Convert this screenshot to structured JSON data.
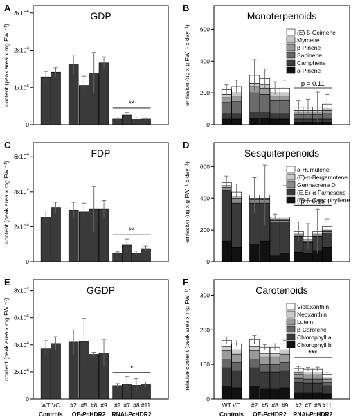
{
  "figure": {
    "xgroups": [
      "Controls",
      "OE-PcHDR2",
      "RNAi-PcHDR2"
    ],
    "xgroup_parts": [
      {
        "pre": "Controls",
        "it": "",
        "post": ""
      },
      {
        "pre": "OE-",
        "it": "Pc",
        "post": "HDR2"
      },
      {
        "pre": "RNAi-",
        "it": "Pc",
        "post": "HDR2"
      }
    ],
    "xticks": [
      "WT",
      "VC",
      "#2",
      "#5",
      "#8",
      "#9",
      "#2",
      "#7",
      "#8",
      "#11"
    ]
  },
  "chart_data": [
    {
      "id": "A",
      "type": "bar",
      "title": "GDP",
      "ylabel": "content (peak area x mg FW ⁻¹)",
      "yticks": [
        {
          "v": 0,
          "m": "0",
          "e": ""
        },
        {
          "v": 10000,
          "m": "1x10",
          "e": "4"
        },
        {
          "v": 20000,
          "m": "2x10",
          "e": "4"
        },
        {
          "v": 30000,
          "m": "3x10",
          "e": "4"
        }
      ],
      "ylim": [
        0,
        32000
      ],
      "categories": [
        "WT",
        "VC",
        "#2",
        "#5",
        "#8",
        "#9",
        "#2",
        "#7",
        "#8",
        "#11"
      ],
      "values": [
        12800,
        14100,
        16100,
        10500,
        13900,
        16600,
        1500,
        2600,
        1400,
        1500
      ],
      "errors": [
        1500,
        1200,
        2600,
        2500,
        5500,
        1600,
        300,
        700,
        400,
        300
      ],
      "color": "#3a3a3a",
      "annotation": {
        "text": "**",
        "span": [
          6,
          9
        ]
      }
    },
    {
      "id": "B",
      "type": "stacked-bar",
      "title": "Monoterpenoids",
      "ylabel": "emission (ng x g FW⁻¹ x day⁻¹)",
      "yticks": [
        {
          "v": 0,
          "m": "0",
          "e": ""
        },
        {
          "v": 200,
          "m": "200",
          "e": ""
        },
        {
          "v": 400,
          "m": "400",
          "e": ""
        },
        {
          "v": 600,
          "m": "600",
          "e": ""
        }
      ],
      "ylim": [
        0,
        750
      ],
      "categories": [
        "WT",
        "VC",
        "#2",
        "#5",
        "#8",
        "#9",
        "#2",
        "#7",
        "#8",
        "#11"
      ],
      "series": [
        {
          "name": "α-Pinene",
          "color": "#111111",
          "values": [
            35,
            35,
            40,
            40,
            35,
            35,
            15,
            15,
            15,
            15
          ]
        },
        {
          "name": "Camphene",
          "color": "#3a3a3a",
          "values": [
            35,
            35,
            40,
            40,
            35,
            35,
            20,
            20,
            20,
            20
          ]
        },
        {
          "name": "Sabinene",
          "color": "#6a6a6a",
          "values": [
            70,
            75,
            120,
            110,
            80,
            80,
            30,
            30,
            30,
            35
          ]
        },
        {
          "name": "β-Pinene",
          "color": "#9a9a9a",
          "values": [
            30,
            35,
            40,
            40,
            30,
            30,
            15,
            15,
            15,
            20
          ]
        },
        {
          "name": "Myrcene",
          "color": "#c8c8c8",
          "values": [
            20,
            20,
            20,
            20,
            20,
            20,
            10,
            10,
            10,
            10
          ]
        },
        {
          "name": "(E)-β-Ocimene",
          "color": "#ffffff",
          "values": [
            30,
            40,
            50,
            40,
            30,
            30,
            20,
            20,
            20,
            30
          ]
        }
      ],
      "errors": [
        30,
        40,
        100,
        60,
        40,
        50,
        40,
        50,
        95,
        60
      ],
      "annotation": {
        "text": "p = 0.11",
        "span": [
          6,
          9
        ]
      },
      "legend": "top-right"
    },
    {
      "id": "C",
      "type": "bar",
      "title": "FDP",
      "ylabel": "content (peak area x mg FW ⁻¹)",
      "yticks": [
        {
          "v": 0,
          "m": "0",
          "e": ""
        },
        {
          "v": 20000,
          "m": "2x10",
          "e": "4"
        },
        {
          "v": 40000,
          "m": "4x10",
          "e": "4"
        },
        {
          "v": 60000,
          "m": "6x10",
          "e": "4"
        }
      ],
      "ylim": [
        0,
        68000
      ],
      "categories": [
        "WT",
        "VC",
        "#2",
        "#5",
        "#8",
        "#9",
        "#2",
        "#7",
        "#8",
        "#11"
      ],
      "values": [
        25500,
        31000,
        29500,
        28500,
        30000,
        30000,
        4800,
        9500,
        4800,
        7500
      ],
      "errors": [
        3500,
        3000,
        4500,
        5000,
        13000,
        5000,
        800,
        3500,
        1200,
        1500
      ],
      "color": "#3a3a3a",
      "annotation": {
        "text": "**",
        "span": [
          6,
          9
        ]
      }
    },
    {
      "id": "D",
      "type": "stacked-bar",
      "title": "Sesquiterpenoids",
      "ylabel": "emission (ng x g FW⁻¹ x day⁻¹)",
      "yticks": [
        {
          "v": 0,
          "m": "0",
          "e": ""
        },
        {
          "v": 200,
          "m": "200",
          "e": ""
        },
        {
          "v": 400,
          "m": "400",
          "e": ""
        },
        {
          "v": 600,
          "m": "600",
          "e": ""
        }
      ],
      "ylim": [
        0,
        750
      ],
      "categories": [
        "WT",
        "VC",
        "#2",
        "#5",
        "#8",
        "#9",
        "#2",
        "#7",
        "#8",
        "#11"
      ],
      "series": [
        {
          "name": "(E)-β-Caryophyllene",
          "color": "#111111",
          "values": [
            130,
            90,
            110,
            130,
            40,
            50,
            60,
            50,
            70,
            90
          ]
        },
        {
          "name": "(E,E)-α-Farnesene",
          "color": "#3a3a3a",
          "values": [
            320,
            280,
            260,
            240,
            210,
            200,
            100,
            70,
            90,
            90
          ]
        },
        {
          "name": "Germacrene D",
          "color": "#8a8a8a",
          "values": [
            20,
            30,
            20,
            20,
            10,
            10,
            10,
            10,
            10,
            10
          ]
        },
        {
          "name": "(E)-α-Bergamotene",
          "color": "#c8c8c8",
          "values": [
            10,
            10,
            10,
            10,
            10,
            10,
            10,
            10,
            10,
            10
          ]
        },
        {
          "name": "α-Humulene",
          "color": "#ffffff",
          "values": [
            20,
            30,
            20,
            20,
            10,
            10,
            10,
            20,
            10,
            20
          ]
        }
      ],
      "errors": [
        40,
        50,
        110,
        190,
        20,
        200,
        60,
        80,
        140,
        50
      ],
      "annotation": {
        "text": "p = 0.15",
        "span": [
          6,
          9
        ]
      },
      "legend": "top-right"
    },
    {
      "id": "E",
      "type": "bar",
      "title": "GGDP",
      "ylabel": "content (peak area x mg FW ⁻¹)",
      "yticks": [
        {
          "v": 0,
          "m": "0",
          "e": ""
        },
        {
          "v": 20000,
          "m": "2x10",
          "e": "4"
        },
        {
          "v": 40000,
          "m": "4x10",
          "e": "4"
        },
        {
          "v": 60000,
          "m": "6x10",
          "e": "4"
        },
        {
          "v": 80000,
          "m": "8x10",
          "e": "4"
        }
      ],
      "ylim": [
        0,
        88000
      ],
      "categories": [
        "WT",
        "VC",
        "#2",
        "#5",
        "#8",
        "#9",
        "#2",
        "#7",
        "#8",
        "#11"
      ],
      "values": [
        37000,
        41000,
        42000,
        42500,
        33000,
        34000,
        9800,
        11000,
        10000,
        10500
      ],
      "errors": [
        6000,
        5000,
        9000,
        17000,
        1500,
        10000,
        1500,
        5500,
        5000,
        2000
      ],
      "color": "#3a3a3a",
      "annotation": {
        "text": "*",
        "span": [
          6,
          9
        ]
      }
    },
    {
      "id": "F",
      "type": "stacked-bar",
      "title": "Carotenoids",
      "ylabel": "relative content (peak area x mg FW⁻¹)",
      "yticks": [
        {
          "v": 0,
          "m": "0",
          "e": ""
        },
        {
          "v": 100,
          "m": "100",
          "e": ""
        },
        {
          "v": 200,
          "m": "200",
          "e": ""
        },
        {
          "v": 300,
          "m": "300",
          "e": ""
        }
      ],
      "ylim": [
        0,
        345
      ],
      "categories": [
        "WT",
        "VC",
        "#2",
        "#5",
        "#8",
        "#9",
        "#2",
        "#7",
        "#8",
        "#11"
      ],
      "series": [
        {
          "name": "Chlorophyll b",
          "color": "#111111",
          "values": [
            35,
            32,
            35,
            30,
            30,
            32,
            18,
            18,
            18,
            14
          ]
        },
        {
          "name": "Chlorophyll a",
          "color": "#3a3a3a",
          "values": [
            55,
            50,
            55,
            48,
            48,
            50,
            30,
            28,
            28,
            24
          ]
        },
        {
          "name": "β-Carotene",
          "color": "#666666",
          "values": [
            25,
            24,
            25,
            22,
            22,
            24,
            12,
            12,
            12,
            10
          ]
        },
        {
          "name": "Lutein",
          "color": "#9a9a9a",
          "values": [
            25,
            24,
            25,
            22,
            22,
            24,
            12,
            12,
            12,
            10
          ]
        },
        {
          "name": "Neoxanthin",
          "color": "#cccccc",
          "values": [
            12,
            12,
            12,
            10,
            10,
            12,
            6,
            6,
            6,
            5
          ]
        },
        {
          "name": "Violaxanthin",
          "color": "#ffffff",
          "values": [
            18,
            18,
            20,
            18,
            18,
            18,
            10,
            10,
            10,
            8
          ]
        }
      ],
      "errors": [
        10,
        8,
        12,
        8,
        10,
        10,
        6,
        5,
        6,
        5
      ],
      "annotation": {
        "text": "***",
        "span": [
          6,
          9
        ]
      },
      "legend": "top-right"
    }
  ]
}
